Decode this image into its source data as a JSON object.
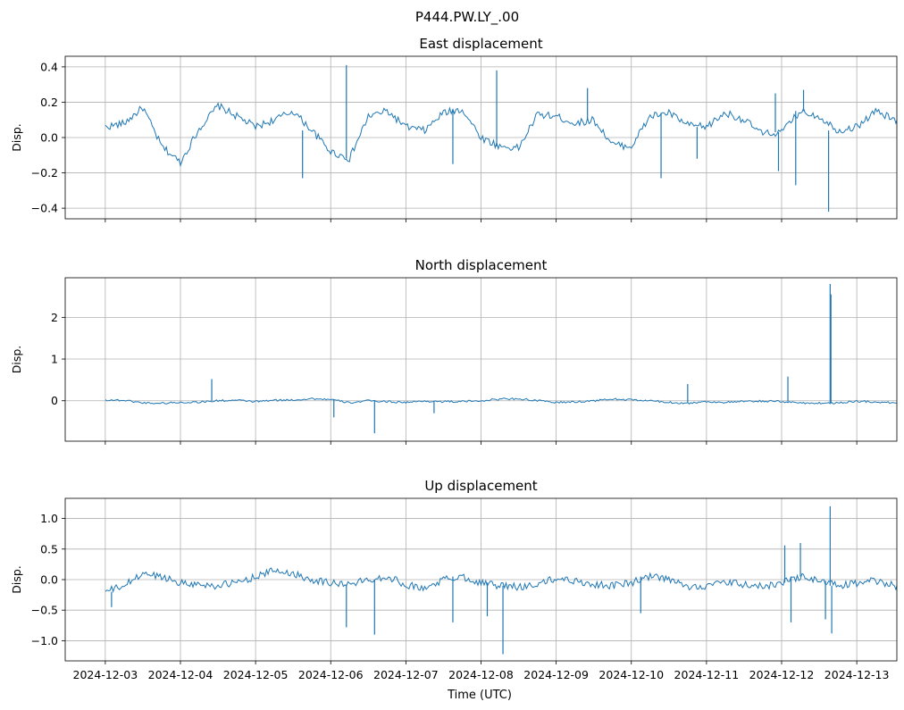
{
  "figure": {
    "suptitle": "P444.PW.LY_.00",
    "xlabel": "Time (UTC)"
  },
  "chart_data": [
    {
      "type": "line",
      "title": "East displacement",
      "ylabel": "Disp.",
      "xlabel": "",
      "ylim": [
        -0.46,
        0.46
      ],
      "yticks": [
        -0.4,
        -0.2,
        0.0,
        0.2,
        0.4
      ],
      "ytick_labels": [
        "−0.4",
        "−0.2",
        "0.0",
        "0.2",
        "0.4"
      ],
      "xlim": [
        "2024-12-02T11:12",
        "2024-12-13T12:48"
      ],
      "xticks": [
        "2024-12-03",
        "2024-12-04",
        "2024-12-05",
        "2024-12-06",
        "2024-12-07",
        "2024-12-08",
        "2024-12-09",
        "2024-12-10",
        "2024-12-11",
        "2024-12-12",
        "2024-12-13"
      ],
      "xtick_labels_shown": false,
      "grid": true,
      "color": "#1f77b4",
      "series": [
        {
          "x_start": "2024-12-03T00:00",
          "x_step_hours": 6,
          "values": [
            0.06,
            0.08,
            0.17,
            -0.05,
            -0.14,
            0.05,
            0.18,
            0.12,
            0.06,
            0.1,
            0.15,
            0.04,
            -0.08,
            -0.12,
            0.12,
            0.15,
            0.06,
            0.04,
            0.14,
            0.16,
            0.0,
            -0.05,
            -0.06,
            0.13,
            0.12,
            0.08,
            0.1,
            -0.04,
            -0.05,
            0.12,
            0.14,
            0.07,
            0.06,
            0.14,
            0.1,
            0.02,
            0.03,
            0.15,
            0.12,
            0.04,
            0.06,
            0.15,
            0.1,
            0.04,
            0.07,
            0.18,
            0.12,
            0.04,
            0.06,
            0.14,
            0.12,
            0.02,
            0.04,
            0.12,
            0.13,
            0.03,
            0.05,
            0.16,
            0.13,
            0.04,
            0.06,
            0.14,
            0.12,
            0.05,
            0.06,
            0.16,
            0.12,
            0.0,
            0.02,
            0.1,
            0.08,
            0.06,
            0.06,
            0.14,
            0.12,
            0.08,
            0.1,
            0.18,
            0.11,
            0.04,
            0.06,
            0.14,
            0.16,
            0.08,
            0.1,
            0.12,
            0.15,
            0.12,
            0.08,
            0.04,
            0.12,
            0.16,
            0.1,
            0.06,
            0.12,
            0.16,
            0.11,
            0.08,
            0.08,
            0.04,
            0.06,
            0.03,
            0.04,
            0.06,
            0.08,
            0.16,
            0.18,
            0.1,
            0.12,
            0.12
          ]
        }
      ],
      "spikes": [
        {
          "x": "2024-12-05T15:00",
          "y": -0.23
        },
        {
          "x": "2024-12-06T05:00",
          "y": 0.41
        },
        {
          "x": "2024-12-07T15:00",
          "y": -0.15
        },
        {
          "x": "2024-12-08T05:00",
          "y": 0.38
        },
        {
          "x": "2024-12-09T10:00",
          "y": 0.28
        },
        {
          "x": "2024-12-10T09:30",
          "y": -0.23
        },
        {
          "x": "2024-12-10T21:00",
          "y": -0.12
        },
        {
          "x": "2024-12-11T22:00",
          "y": 0.25
        },
        {
          "x": "2024-12-11T23:00",
          "y": -0.19
        },
        {
          "x": "2024-12-12T04:30",
          "y": -0.27
        },
        {
          "x": "2024-12-12T07:00",
          "y": 0.27
        },
        {
          "x": "2024-12-12T15:00",
          "y": -0.42
        }
      ]
    },
    {
      "type": "line",
      "title": "North displacement",
      "ylabel": "Disp.",
      "xlabel": "",
      "ylim": [
        -0.97,
        2.95
      ],
      "yticks": [
        0,
        1,
        2
      ],
      "ytick_labels": [
        "0",
        "1",
        "2"
      ],
      "xlim": [
        "2024-12-02T11:12",
        "2024-12-13T12:48"
      ],
      "xticks": [
        "2024-12-03",
        "2024-12-04",
        "2024-12-05",
        "2024-12-06",
        "2024-12-07",
        "2024-12-08",
        "2024-12-09",
        "2024-12-10",
        "2024-12-11",
        "2024-12-12",
        "2024-12-13"
      ],
      "xtick_labels_shown": false,
      "grid": true,
      "color": "#1f77b4",
      "series": [
        {
          "x_start": "2024-12-03T00:00",
          "x_step_hours": 6,
          "values": [
            0.02,
            0.01,
            -0.05,
            -0.06,
            -0.04,
            -0.03,
            0.0,
            0.01,
            -0.02,
            0.01,
            0.02,
            0.05,
            0.03,
            -0.05,
            0.0,
            -0.02,
            -0.04,
            -0.01,
            -0.02,
            -0.02,
            0.0,
            0.04,
            0.05,
            0.0,
            -0.04,
            -0.03,
            0.0,
            0.04,
            0.02,
            0.0,
            -0.04,
            -0.06,
            -0.02,
            -0.04,
            -0.02,
            -0.01,
            -0.02,
            -0.05,
            -0.06,
            -0.05,
            -0.01,
            -0.03,
            -0.05,
            -0.04,
            -0.03,
            -0.04,
            -0.02,
            -0.03,
            -0.05,
            -0.08,
            -0.04,
            -0.03,
            -0.06,
            -0.04,
            0.0,
            0.02,
            0.04,
            -0.03,
            -0.05,
            -0.06,
            -0.03,
            -0.04,
            -0.02,
            -0.02,
            -0.03,
            -0.04,
            0.0,
            0.02,
            0.04,
            0.02,
            0.06,
            0.04,
            -0.02,
            -0.04,
            -0.05,
            -0.02,
            0.01,
            -0.03,
            0.02,
            -0.02,
            0.0,
            0.02,
            0.03,
            0.05,
            0.02,
            0.0,
            -0.02,
            -0.04,
            -0.03,
            0.02,
            0.06,
            0.03,
            -0.02,
            -0.06,
            -0.01,
            0.02,
            0.04,
            0.06,
            0.05,
            0.04,
            0.03,
            0.06,
            0.04,
            0.02,
            0.02,
            0.05,
            0.06,
            0.08,
            0.04,
            0.03
          ]
        }
      ],
      "spikes": [
        {
          "x": "2024-12-04T10:00",
          "y": 0.52
        },
        {
          "x": "2024-12-06T01:00",
          "y": -0.4
        },
        {
          "x": "2024-12-06T14:00",
          "y": -0.78
        },
        {
          "x": "2024-12-07T09:00",
          "y": -0.3
        },
        {
          "x": "2024-12-10T18:00",
          "y": 0.4
        },
        {
          "x": "2024-12-12T02:00",
          "y": 0.58
        },
        {
          "x": "2024-12-12T15:30",
          "y": 2.8
        },
        {
          "x": "2024-12-12T15:45",
          "y": 2.55
        }
      ]
    },
    {
      "type": "line",
      "title": "Up displacement",
      "ylabel": "Disp.",
      "xlabel": "Time (UTC)",
      "ylim": [
        -1.33,
        1.33
      ],
      "yticks": [
        -1.0,
        -0.5,
        0.0,
        0.5,
        1.0
      ],
      "ytick_labels": [
        "−1.0",
        "−0.5",
        "0.0",
        "0.5",
        "1.0"
      ],
      "xlim": [
        "2024-12-02T11:12",
        "2024-12-13T12:48"
      ],
      "xticks": [
        "2024-12-03",
        "2024-12-04",
        "2024-12-05",
        "2024-12-06",
        "2024-12-07",
        "2024-12-08",
        "2024-12-09",
        "2024-12-10",
        "2024-12-11",
        "2024-12-12",
        "2024-12-13"
      ],
      "xtick_labels": [
        "2024-12-03",
        "2024-12-04",
        "2024-12-05",
        "2024-12-06",
        "2024-12-07",
        "2024-12-08",
        "2024-12-09",
        "2024-12-10",
        "2024-12-11",
        "2024-12-12",
        "2024-12-13"
      ],
      "xtick_labels_shown": true,
      "grid": true,
      "color": "#1f77b4",
      "series": [
        {
          "x_start": "2024-12-03T00:00",
          "x_step_hours": 6,
          "values": [
            -0.2,
            -0.1,
            0.1,
            0.05,
            -0.05,
            -0.08,
            -0.1,
            -0.05,
            0.05,
            0.15,
            0.1,
            0.0,
            -0.05,
            -0.08,
            0.0,
            0.05,
            -0.08,
            -0.15,
            0.0,
            0.05,
            -0.05,
            -0.1,
            -0.12,
            -0.08,
            0.02,
            -0.02,
            -0.08,
            -0.1,
            -0.05,
            0.05,
            0.0,
            -0.12,
            -0.1,
            -0.05,
            -0.08,
            -0.12,
            -0.05,
            0.05,
            -0.02,
            -0.1,
            -0.06,
            -0.02,
            -0.1,
            -0.15,
            -0.05,
            0.0,
            -0.08,
            -0.12,
            -0.06,
            -0.02,
            -0.06,
            -0.1,
            -0.08,
            -0.02,
            -0.06,
            -0.12,
            -0.05,
            0.0,
            -0.08,
            -0.1,
            -0.04,
            0.02,
            -0.06,
            -0.12,
            -0.08,
            0.05,
            -0.02,
            -0.1,
            -0.06,
            -0.02,
            -0.08,
            -0.1,
            -0.04,
            0.0,
            -0.06,
            -0.12,
            -0.05,
            0.0,
            -0.1,
            -0.08,
            -0.02,
            0.05,
            -0.05,
            -0.1,
            -0.06,
            -0.02,
            -0.08,
            -0.12,
            -0.06,
            0.0,
            -0.05,
            -0.1,
            -0.1,
            -0.05,
            -0.02,
            0.1,
            0.05,
            -0.08,
            -0.1,
            0.05,
            0.02,
            -0.12,
            -0.15,
            -0.1,
            -0.05,
            -0.08,
            -0.15,
            -0.18,
            -0.12,
            -0.15
          ]
        }
      ],
      "spikes": [
        {
          "x": "2024-12-03T02:00",
          "y": -0.45
        },
        {
          "x": "2024-12-06T05:00",
          "y": -0.78
        },
        {
          "x": "2024-12-06T14:00",
          "y": -0.9
        },
        {
          "x": "2024-12-07T15:00",
          "y": -0.7
        },
        {
          "x": "2024-12-08T02:00",
          "y": -0.6
        },
        {
          "x": "2024-12-08T07:00",
          "y": -1.22
        },
        {
          "x": "2024-12-10T03:00",
          "y": -0.55
        },
        {
          "x": "2024-12-12T01:00",
          "y": 0.56
        },
        {
          "x": "2024-12-12T03:00",
          "y": -0.7
        },
        {
          "x": "2024-12-12T06:00",
          "y": 0.6
        },
        {
          "x": "2024-12-12T14:00",
          "y": -0.65
        },
        {
          "x": "2024-12-12T15:30",
          "y": 1.2
        },
        {
          "x": "2024-12-12T16:00",
          "y": -0.88
        }
      ]
    }
  ]
}
